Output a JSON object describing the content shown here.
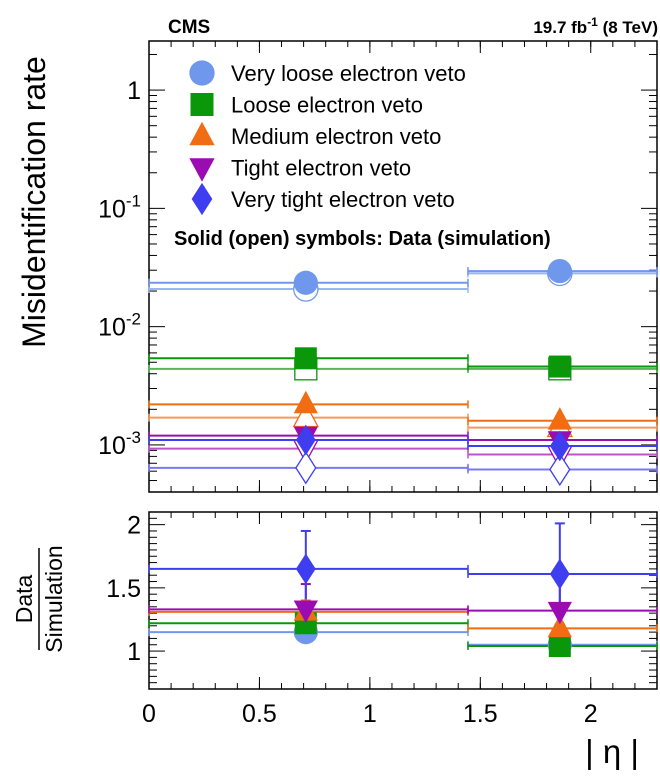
{
  "chart_data": [
    {
      "type": "scatter",
      "panel": "main",
      "ylabel": "Misidentification rate",
      "yscale": "log",
      "ylim": [
        0.0004,
        2.6
      ],
      "xlim": [
        0,
        2.3
      ],
      "y_tick_labels": [
        "10^-3",
        "10^-2",
        "10^-1",
        "1"
      ],
      "header_left": "CMS",
      "header_right": "19.7 fb^-1 (8 TeV)",
      "legend_note": "Solid (open) symbols: Data (simulation)",
      "legend_position": "top",
      "bins": [
        [
          0,
          1.4442
        ],
        [
          1.4442,
          2.3
        ]
      ],
      "x": [
        0.71,
        1.86
      ],
      "series": [
        {
          "name": "Very loose electron veto",
          "marker": "circle",
          "color": "#6f98ec",
          "data": [
            0.0235,
            0.0295
          ],
          "simulation": [
            0.0208,
            0.0282
          ]
        },
        {
          "name": "Loose electron veto",
          "marker": "square",
          "color": "#0a970a",
          "data": [
            0.0054,
            0.0046
          ],
          "simulation": [
            0.0044,
            0.0044
          ]
        },
        {
          "name": "Medium electron veto",
          "marker": "triangle-up",
          "color": "#f16d14",
          "data": [
            0.0022,
            0.0016
          ],
          "simulation": [
            0.0017,
            0.0014
          ]
        },
        {
          "name": "Tight electron veto",
          "marker": "triangle-down",
          "color": "#9b0bb2",
          "data": [
            0.0012,
            0.0011
          ],
          "simulation": [
            0.00093,
            0.00083
          ]
        },
        {
          "name": "Very tight electron veto",
          "marker": "diamond",
          "color": "#3e3ef0",
          "data": [
            0.0011,
            0.00098
          ],
          "simulation": [
            0.00064,
            0.00062
          ]
        }
      ]
    },
    {
      "type": "scatter",
      "panel": "ratio",
      "ylabel_top": "Data",
      "ylabel_bottom": "Simulation",
      "xlabel": "| η |",
      "ylim": [
        0.7,
        2.1
      ],
      "xlim": [
        0,
        2.3
      ],
      "x_ticks": [
        0,
        0.5,
        1,
        1.5,
        2
      ],
      "x_tick_labels": [
        "0",
        "0.5",
        "1",
        "1.5",
        "2"
      ],
      "y_ticks": [
        1,
        1.5,
        2
      ],
      "y_tick_labels": [
        "1",
        "1.5",
        "2"
      ],
      "x": [
        0.71,
        1.86
      ],
      "series": [
        {
          "name": "Very loose electron veto",
          "values": [
            1.15,
            1.05
          ],
          "err": [
            0.02,
            0.02
          ]
        },
        {
          "name": "Loose electron veto",
          "values": [
            1.22,
            1.04
          ],
          "err": [
            0.05,
            0.06
          ]
        },
        {
          "name": "Medium electron veto",
          "values": [
            1.31,
            1.18
          ],
          "err": [
            0.09,
            0.12
          ]
        },
        {
          "name": "Tight electron veto",
          "values": [
            1.33,
            1.32
          ],
          "err": [
            0.2,
            0.25
          ]
        },
        {
          "name": "Very tight electron veto",
          "values": [
            1.65,
            1.61
          ],
          "err": [
            0.3,
            0.4
          ]
        }
      ]
    }
  ]
}
